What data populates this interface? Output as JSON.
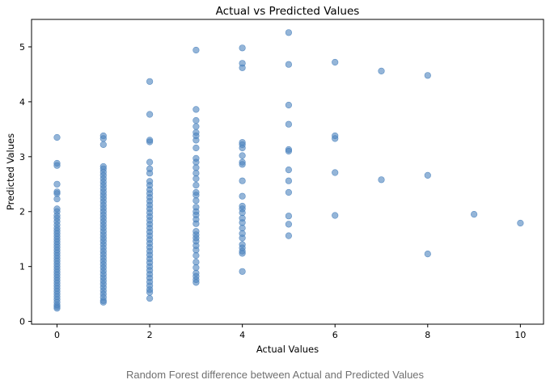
{
  "chart_data": {
    "type": "scatter",
    "title": "Actual vs Predicted Values",
    "xlabel": "Actual Values",
    "ylabel": "Predicted Values",
    "xlim": [
      -0.55,
      10.5
    ],
    "ylim": [
      -0.05,
      5.5
    ],
    "xticks": [
      0,
      2,
      4,
      6,
      8,
      10
    ],
    "yticks": [
      0,
      1,
      2,
      3,
      4,
      5
    ],
    "grid": false,
    "marker_color": "#4C84BE",
    "marker_alpha": 0.6,
    "points": [
      [
        0,
        3.35
      ],
      [
        0,
        2.88
      ],
      [
        0,
        2.84
      ],
      [
        0,
        2.5
      ],
      [
        0,
        2.36
      ],
      [
        0,
        2.33
      ],
      [
        0,
        2.23
      ],
      [
        0,
        2.05
      ],
      [
        0,
        2.0
      ],
      [
        0,
        1.93
      ],
      [
        0,
        1.88
      ],
      [
        0,
        1.82
      ],
      [
        0,
        1.76
      ],
      [
        0,
        1.7
      ],
      [
        0,
        1.65
      ],
      [
        0,
        1.6
      ],
      [
        0,
        1.55
      ],
      [
        0,
        1.5
      ],
      [
        0,
        1.45
      ],
      [
        0,
        1.4
      ],
      [
        0,
        1.35
      ],
      [
        0,
        1.3
      ],
      [
        0,
        1.25
      ],
      [
        0,
        1.2
      ],
      [
        0,
        1.15
      ],
      [
        0,
        1.1
      ],
      [
        0,
        1.05
      ],
      [
        0,
        1.0
      ],
      [
        0,
        0.95
      ],
      [
        0,
        0.9
      ],
      [
        0,
        0.85
      ],
      [
        0,
        0.8
      ],
      [
        0,
        0.75
      ],
      [
        0,
        0.7
      ],
      [
        0,
        0.65
      ],
      [
        0,
        0.6
      ],
      [
        0,
        0.55
      ],
      [
        0,
        0.5
      ],
      [
        0,
        0.45
      ],
      [
        0,
        0.4
      ],
      [
        0,
        0.35
      ],
      [
        0,
        0.3
      ],
      [
        0,
        0.27
      ],
      [
        0,
        0.24
      ],
      [
        1,
        3.38
      ],
      [
        1,
        3.33
      ],
      [
        1,
        3.22
      ],
      [
        1,
        2.82
      ],
      [
        1,
        2.78
      ],
      [
        1,
        2.72
      ],
      [
        1,
        2.66
      ],
      [
        1,
        2.6
      ],
      [
        1,
        2.54
      ],
      [
        1,
        2.48
      ],
      [
        1,
        2.42
      ],
      [
        1,
        2.36
      ],
      [
        1,
        2.3
      ],
      [
        1,
        2.24
      ],
      [
        1,
        2.18
      ],
      [
        1,
        2.12
      ],
      [
        1,
        2.06
      ],
      [
        1,
        2.0
      ],
      [
        1,
        1.94
      ],
      [
        1,
        1.88
      ],
      [
        1,
        1.82
      ],
      [
        1,
        1.76
      ],
      [
        1,
        1.7
      ],
      [
        1,
        1.64
      ],
      [
        1,
        1.58
      ],
      [
        1,
        1.52
      ],
      [
        1,
        1.46
      ],
      [
        1,
        1.4
      ],
      [
        1,
        1.34
      ],
      [
        1,
        1.28
      ],
      [
        1,
        1.22
      ],
      [
        1,
        1.16
      ],
      [
        1,
        1.1
      ],
      [
        1,
        1.04
      ],
      [
        1,
        0.98
      ],
      [
        1,
        0.92
      ],
      [
        1,
        0.86
      ],
      [
        1,
        0.8
      ],
      [
        1,
        0.74
      ],
      [
        1,
        0.68
      ],
      [
        1,
        0.62
      ],
      [
        1,
        0.56
      ],
      [
        1,
        0.5
      ],
      [
        1,
        0.44
      ],
      [
        1,
        0.38
      ],
      [
        1,
        0.35
      ],
      [
        2,
        4.37
      ],
      [
        2,
        3.77
      ],
      [
        2,
        3.3
      ],
      [
        2,
        3.27
      ],
      [
        2,
        2.9
      ],
      [
        2,
        2.78
      ],
      [
        2,
        2.7
      ],
      [
        2,
        2.55
      ],
      [
        2,
        2.48
      ],
      [
        2,
        2.4
      ],
      [
        2,
        2.33
      ],
      [
        2,
        2.26
      ],
      [
        2,
        2.19
      ],
      [
        2,
        2.12
      ],
      [
        2,
        2.05
      ],
      [
        2,
        1.98
      ],
      [
        2,
        1.91
      ],
      [
        2,
        1.84
      ],
      [
        2,
        1.77
      ],
      [
        2,
        1.7
      ],
      [
        2,
        1.63
      ],
      [
        2,
        1.56
      ],
      [
        2,
        1.49
      ],
      [
        2,
        1.42
      ],
      [
        2,
        1.35
      ],
      [
        2,
        1.28
      ],
      [
        2,
        1.21
      ],
      [
        2,
        1.14
      ],
      [
        2,
        1.07
      ],
      [
        2,
        1.0
      ],
      [
        2,
        0.93
      ],
      [
        2,
        0.86
      ],
      [
        2,
        0.79
      ],
      [
        2,
        0.72
      ],
      [
        2,
        0.65
      ],
      [
        2,
        0.58
      ],
      [
        2,
        0.53
      ],
      [
        2,
        0.42
      ],
      [
        3,
        4.94
      ],
      [
        3,
        3.86
      ],
      [
        3,
        3.66
      ],
      [
        3,
        3.55
      ],
      [
        3,
        3.44
      ],
      [
        3,
        3.38
      ],
      [
        3,
        3.3
      ],
      [
        3,
        3.16
      ],
      [
        3,
        2.97
      ],
      [
        3,
        2.9
      ],
      [
        3,
        2.8
      ],
      [
        3,
        2.7
      ],
      [
        3,
        2.6
      ],
      [
        3,
        2.48
      ],
      [
        3,
        2.35
      ],
      [
        3,
        2.3
      ],
      [
        3,
        2.2
      ],
      [
        3,
        2.08
      ],
      [
        3,
        2.0
      ],
      [
        3,
        1.94
      ],
      [
        3,
        1.86
      ],
      [
        3,
        1.78
      ],
      [
        3,
        1.64
      ],
      [
        3,
        1.58
      ],
      [
        3,
        1.52
      ],
      [
        3,
        1.46
      ],
      [
        3,
        1.38
      ],
      [
        3,
        1.3
      ],
      [
        3,
        1.2
      ],
      [
        3,
        1.08
      ],
      [
        3,
        0.98
      ],
      [
        3,
        0.88
      ],
      [
        3,
        0.82
      ],
      [
        3,
        0.76
      ],
      [
        3,
        0.71
      ],
      [
        4,
        4.98
      ],
      [
        4,
        4.7
      ],
      [
        4,
        4.62
      ],
      [
        4,
        3.26
      ],
      [
        4,
        3.22
      ],
      [
        4,
        3.16
      ],
      [
        4,
        3.02
      ],
      [
        4,
        2.9
      ],
      [
        4,
        2.86
      ],
      [
        4,
        2.56
      ],
      [
        4,
        2.28
      ],
      [
        4,
        2.1
      ],
      [
        4,
        2.05
      ],
      [
        4,
        1.98
      ],
      [
        4,
        1.88
      ],
      [
        4,
        1.8
      ],
      [
        4,
        1.7
      ],
      [
        4,
        1.6
      ],
      [
        4,
        1.52
      ],
      [
        4,
        1.4
      ],
      [
        4,
        1.34
      ],
      [
        4,
        1.28
      ],
      [
        4,
        1.24
      ],
      [
        4,
        0.91
      ],
      [
        5,
        5.26
      ],
      [
        5,
        4.68
      ],
      [
        5,
        3.94
      ],
      [
        5,
        3.59
      ],
      [
        5,
        3.13
      ],
      [
        5,
        3.1
      ],
      [
        5,
        2.76
      ],
      [
        5,
        2.56
      ],
      [
        5,
        2.35
      ],
      [
        5,
        1.92
      ],
      [
        5,
        1.77
      ],
      [
        5,
        1.56
      ],
      [
        6,
        4.72
      ],
      [
        6,
        3.38
      ],
      [
        6,
        3.33
      ],
      [
        6,
        2.71
      ],
      [
        6,
        1.93
      ],
      [
        7,
        4.56
      ],
      [
        7,
        2.58
      ],
      [
        8,
        4.48
      ],
      [
        8,
        2.66
      ],
      [
        8,
        1.23
      ],
      [
        9,
        1.95
      ],
      [
        10,
        1.79
      ]
    ]
  },
  "caption": "Random Forest difference between Actual and Predicted Values"
}
